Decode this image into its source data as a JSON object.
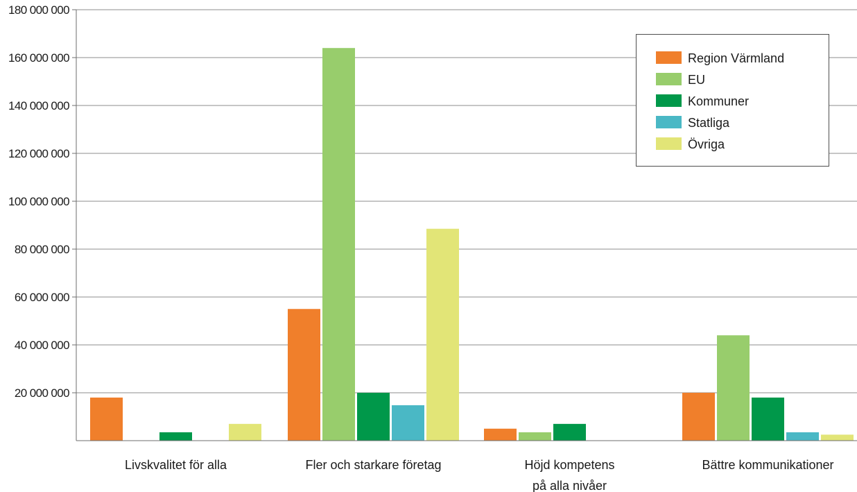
{
  "chart_data": {
    "type": "bar",
    "title": "",
    "xlabel": "",
    "ylabel": "",
    "ylim": [
      0,
      180000000
    ],
    "yticks": [
      {
        "value": 20000000,
        "label": "20 000 000"
      },
      {
        "value": 40000000,
        "label": "40 000 000"
      },
      {
        "value": 60000000,
        "label": "60 000 000"
      },
      {
        "value": 80000000,
        "label": "80 000 000"
      },
      {
        "value": 100000000,
        "label": "100 000 000"
      },
      {
        "value": 120000000,
        "label": "120 000 000"
      },
      {
        "value": 140000000,
        "label": "140 000 000"
      },
      {
        "value": 160000000,
        "label": "160 000 000"
      },
      {
        "value": 180000000,
        "label": "180 000 000"
      }
    ],
    "categories": [
      [
        "Livskvalitet för alla"
      ],
      [
        "Fler och starkare företag"
      ],
      [
        "Höjd kompetens",
        "på alla nivåer"
      ],
      [
        "Bättre kommunikationer"
      ]
    ],
    "series": [
      {
        "name": "Region Värmland",
        "color": "#f07f2b",
        "values": [
          18000000,
          55000000,
          5000000,
          20000000
        ]
      },
      {
        "name": "EU",
        "color": "#98cd6c",
        "values": [
          0,
          164000000,
          3500000,
          44000000
        ]
      },
      {
        "name": "Kommuner",
        "color": "#00984a",
        "values": [
          3500000,
          20000000,
          7000000,
          18000000
        ]
      },
      {
        "name": "Statliga",
        "color": "#4ab8c5",
        "values": [
          0,
          14800000,
          0,
          3500000
        ]
      },
      {
        "name": "Övriga",
        "color": "#e2e577",
        "values": [
          7000000,
          88500000,
          0,
          2500000
        ]
      }
    ],
    "grid": true,
    "legend_position": "top-right"
  }
}
